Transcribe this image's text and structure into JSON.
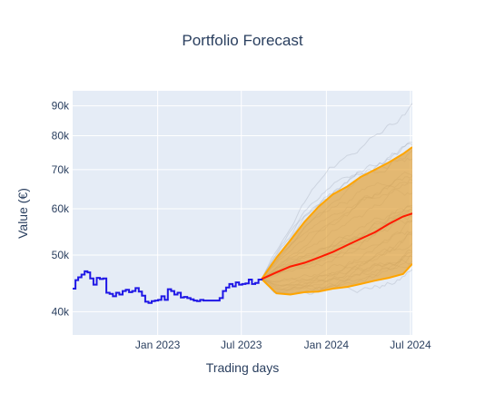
{
  "chart_data": {
    "type": "line",
    "title": "Portfolio Forecast",
    "xlabel": "Trading days",
    "ylabel": "Value (€)",
    "y_scale": "log",
    "ylim": [
      36500,
      95500
    ],
    "xlim": [
      "2022-07-01",
      "2024-07-05"
    ],
    "grid": true,
    "legend": "none",
    "x_ticks": [
      {
        "date": "2023-01-01",
        "label": "Jan 2023"
      },
      {
        "date": "2023-07-01",
        "label": "Jul 2023"
      },
      {
        "date": "2024-01-01",
        "label": "Jan 2024"
      },
      {
        "date": "2024-07-01",
        "label": "Jul 2024"
      }
    ],
    "y_ticks": [
      {
        "value": 40000,
        "label": "40k"
      },
      {
        "value": 50000,
        "label": "50k"
      },
      {
        "value": 60000,
        "label": "60k"
      },
      {
        "value": 70000,
        "label": "70k"
      },
      {
        "value": 80000,
        "label": "80k"
      },
      {
        "value": 90000,
        "label": "90k"
      }
    ],
    "colors": {
      "history": "#1f17e6",
      "median": "#ff1a00",
      "band_line": "#ffa500",
      "band_fill": "#e3a33a",
      "paths": "#a0a8b8",
      "plot_bg": "#e5ecf6",
      "grid": "#ffffff",
      "text": "#2a3f5f"
    },
    "history": {
      "x": [
        "2022-07-01",
        "2022-07-07",
        "2022-07-13",
        "2022-07-20",
        "2022-07-27",
        "2022-08-02",
        "2022-08-08",
        "2022-08-15",
        "2022-08-22",
        "2022-08-29",
        "2022-09-05",
        "2022-09-12",
        "2022-09-19",
        "2022-09-26",
        "2022-10-03",
        "2022-10-10",
        "2022-10-17",
        "2022-10-24",
        "2022-10-31",
        "2022-11-07",
        "2022-11-14",
        "2022-11-21",
        "2022-11-28",
        "2022-12-05",
        "2022-12-12",
        "2022-12-19",
        "2022-12-26",
        "2023-01-02",
        "2023-01-09",
        "2023-01-16",
        "2023-01-23",
        "2023-01-30",
        "2023-02-06",
        "2023-02-13",
        "2023-02-20",
        "2023-02-27",
        "2023-03-06",
        "2023-03-13",
        "2023-03-20",
        "2023-03-27",
        "2023-04-03",
        "2023-04-10",
        "2023-04-17",
        "2023-04-24",
        "2023-05-01",
        "2023-05-08",
        "2023-05-15",
        "2023-05-22",
        "2023-05-29",
        "2023-06-05",
        "2023-06-12",
        "2023-06-19",
        "2023-06-26",
        "2023-07-03",
        "2023-07-10",
        "2023-07-17",
        "2023-07-24",
        "2023-07-31",
        "2023-08-07",
        "2023-08-14"
      ],
      "y": [
        43800,
        45300,
        45800,
        46300,
        46900,
        46700,
        45600,
        44500,
        45700,
        45500,
        45600,
        43100,
        42900,
        42500,
        43100,
        42800,
        43400,
        43600,
        43200,
        43400,
        43900,
        43300,
        42600,
        41600,
        41400,
        41700,
        41800,
        41900,
        42500,
        41900,
        43700,
        43400,
        42800,
        43100,
        42300,
        42400,
        42200,
        42000,
        41800,
        41700,
        41900,
        41800,
        41800,
        41800,
        41800,
        41800,
        42200,
        43400,
        44000,
        44600,
        44200,
        44900,
        44500,
        44600,
        44700,
        45400,
        44600,
        44800,
        45400,
        45500
      ]
    },
    "forecast": {
      "x": [
        "2023-08-14",
        "2023-09-15",
        "2023-10-15",
        "2023-11-15",
        "2023-12-15",
        "2024-01-15",
        "2024-02-15",
        "2024-03-15",
        "2024-04-15",
        "2024-05-15",
        "2024-06-15",
        "2024-07-05"
      ],
      "median": [
        45500,
        46700,
        47800,
        48500,
        49500,
        50600,
        52000,
        53300,
        54700,
        56500,
        58200,
        58900
      ],
      "upper": [
        45500,
        49500,
        53000,
        57000,
        60500,
        63500,
        65500,
        68000,
        70000,
        72000,
        74500,
        76500
      ],
      "lower": [
        45500,
        43000,
        42800,
        43200,
        43300,
        43800,
        44100,
        44600,
        45200,
        45700,
        46400,
        48300
      ]
    },
    "simulated_paths": 30
  }
}
